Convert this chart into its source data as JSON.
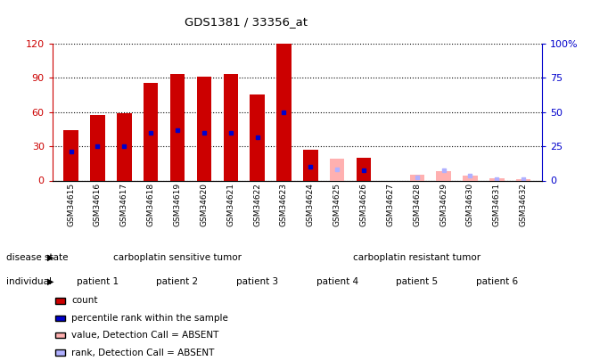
{
  "title": "GDS1381 / 33356_at",
  "samples": [
    "GSM34615",
    "GSM34616",
    "GSM34617",
    "GSM34618",
    "GSM34619",
    "GSM34620",
    "GSM34621",
    "GSM34622",
    "GSM34623",
    "GSM34624",
    "GSM34625",
    "GSM34626",
    "GSM34627",
    "GSM34628",
    "GSM34629",
    "GSM34630",
    "GSM34631",
    "GSM34632"
  ],
  "count": [
    44,
    57,
    59,
    85,
    93,
    91,
    93,
    75,
    120,
    27,
    0,
    20,
    0,
    0,
    0,
    0,
    0,
    0
  ],
  "percentile_rank": [
    25,
    30,
    30,
    42,
    44,
    42,
    42,
    38,
    60,
    12,
    0,
    9,
    0,
    0,
    0,
    0,
    0,
    0
  ],
  "count_absent": [
    0,
    0,
    0,
    0,
    0,
    0,
    0,
    0,
    0,
    0,
    19,
    0,
    0,
    5,
    8,
    4,
    2,
    1
  ],
  "rank_absent": [
    0,
    0,
    0,
    0,
    0,
    0,
    0,
    0,
    0,
    0,
    10,
    0,
    0,
    3,
    9,
    4,
    1,
    1
  ],
  "ylim": [
    0,
    120
  ],
  "yticks": [
    0,
    30,
    60,
    90,
    120
  ],
  "ytick_labels": [
    "0",
    "30",
    "60",
    "90",
    "120"
  ],
  "y2ticks": [
    0,
    25,
    50,
    75,
    100
  ],
  "y2tick_labels": [
    "0",
    "25",
    "50",
    "75",
    "100%"
  ],
  "bar_color_red": "#cc0000",
  "bar_color_blue": "#0000cc",
  "bar_color_pink": "#ffb0b0",
  "bar_color_lightblue": "#b0b0ff",
  "disease_state_sensitive": "carboplatin sensitive tumor",
  "disease_state_resistant": "carboplatin resistant tumor",
  "disease_state_sensitive_color": "#b8f0b8",
  "disease_state_resistant_color": "#55cc55",
  "patient_colors_map": [
    "#f0f0f0",
    "#ee88ee",
    "#f0f0f0",
    "#ee44ee",
    "#f0f0f0",
    "#ee44ee"
  ],
  "patients": [
    "patient 1",
    "patient 2",
    "patient 3",
    "patient 4",
    "patient 5",
    "patient 6"
  ],
  "patient_sample_ranges": [
    [
      0,
      2
    ],
    [
      3,
      5
    ],
    [
      6,
      8
    ],
    [
      9,
      11
    ],
    [
      12,
      14
    ],
    [
      15,
      17
    ]
  ],
  "legend_items": [
    "count",
    "percentile rank within the sample",
    "value, Detection Call = ABSENT",
    "rank, Detection Call = ABSENT"
  ],
  "legend_colors": [
    "#cc0000",
    "#0000cc",
    "#ffb0b0",
    "#b0b0ff"
  ]
}
